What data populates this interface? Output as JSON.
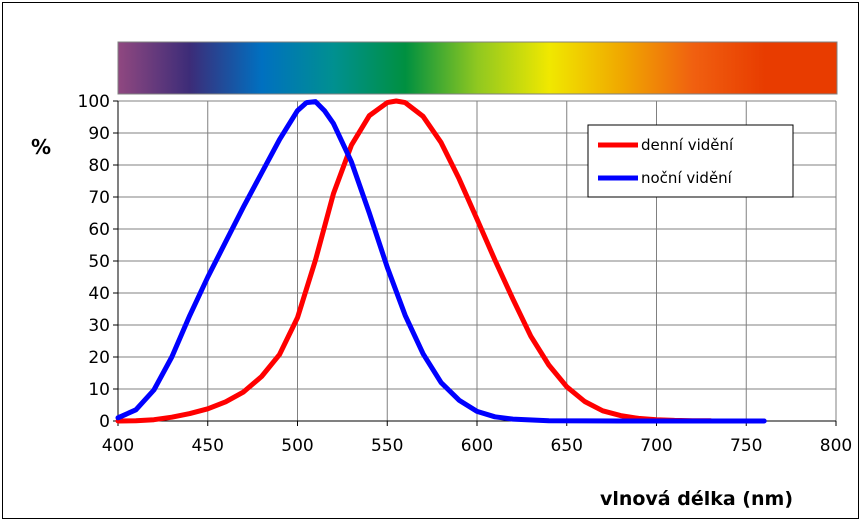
{
  "chart_data": {
    "type": "line",
    "xlabel": "vlnová délka (nm)",
    "ylabel": "%",
    "xlim": [
      400,
      800
    ],
    "ylim": [
      0,
      100
    ],
    "x_ticks": [
      400,
      450,
      500,
      550,
      600,
      650,
      700,
      750,
      800
    ],
    "y_ticks": [
      0,
      10,
      20,
      30,
      40,
      50,
      60,
      70,
      80,
      90,
      100
    ],
    "grid": true,
    "legend_position": "top-right",
    "spectrum_bar": true,
    "series": [
      {
        "name": "denní vidění",
        "color": "#ff0000",
        "points": [
          [
            400,
            0
          ],
          [
            410,
            0.1
          ],
          [
            420,
            0.4
          ],
          [
            430,
            1.2
          ],
          [
            440,
            2.3
          ],
          [
            450,
            3.8
          ],
          [
            460,
            6
          ],
          [
            470,
            9.1
          ],
          [
            480,
            13.9
          ],
          [
            490,
            20.8
          ],
          [
            500,
            32.3
          ],
          [
            510,
            50.3
          ],
          [
            520,
            71
          ],
          [
            530,
            86.2
          ],
          [
            540,
            95.4
          ],
          [
            550,
            99.5
          ],
          [
            555,
            100
          ],
          [
            560,
            99.5
          ],
          [
            570,
            95.2
          ],
          [
            580,
            87
          ],
          [
            590,
            75.7
          ],
          [
            600,
            63.1
          ],
          [
            610,
            50.3
          ],
          [
            620,
            38.1
          ],
          [
            630,
            26.5
          ],
          [
            640,
            17.5
          ],
          [
            650,
            10.7
          ],
          [
            660,
            6.1
          ],
          [
            670,
            3.2
          ],
          [
            680,
            1.7
          ],
          [
            690,
            0.8
          ],
          [
            700,
            0.4
          ],
          [
            710,
            0.2
          ],
          [
            720,
            0.1
          ],
          [
            730,
            0.1
          ]
        ]
      },
      {
        "name": "noční vidění",
        "color": "#0000ff",
        "points": [
          [
            400,
            1
          ],
          [
            410,
            3.5
          ],
          [
            420,
            9.7
          ],
          [
            430,
            20
          ],
          [
            440,
            33
          ],
          [
            450,
            45
          ],
          [
            460,
            56
          ],
          [
            470,
            67
          ],
          [
            480,
            77.5
          ],
          [
            490,
            88
          ],
          [
            500,
            97
          ],
          [
            505,
            99.5
          ],
          [
            510,
            99.8
          ],
          [
            515,
            97
          ],
          [
            520,
            93
          ],
          [
            530,
            81
          ],
          [
            540,
            65
          ],
          [
            550,
            48
          ],
          [
            560,
            33
          ],
          [
            570,
            21
          ],
          [
            580,
            12
          ],
          [
            590,
            6.5
          ],
          [
            600,
            3
          ],
          [
            610,
            1.3
          ],
          [
            620,
            0.6
          ],
          [
            640,
            0.1
          ],
          [
            680,
            0
          ],
          [
            760,
            0
          ]
        ]
      }
    ]
  },
  "colors": {
    "spectrum": [
      "#904880",
      "#3c2c78",
      "#0070c0",
      "#009090",
      "#009040",
      "#90c820",
      "#f0e800",
      "#f0a800",
      "#f06010",
      "#e83c00",
      "#e83c00"
    ]
  }
}
